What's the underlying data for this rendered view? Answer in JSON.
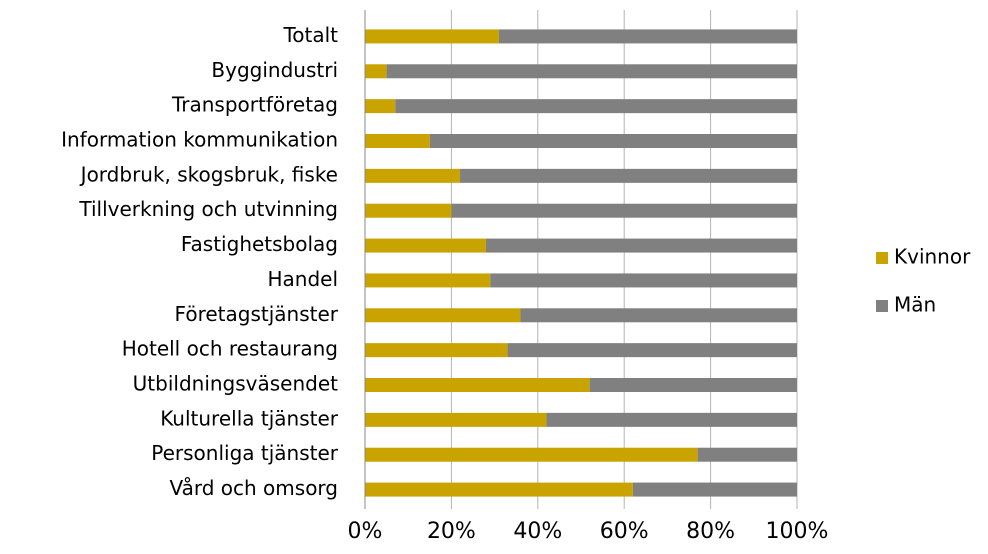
{
  "chart_data": {
    "type": "stacked-barh",
    "categories": [
      "Totalt",
      "Byggindustri",
      "Transportföretag",
      "Information kommunikation",
      "Jordbruk, skogsbruk, fiske",
      "Tillverkning och utvinning",
      "Fastighetsbolag",
      "Handel",
      "Företagstjänster",
      "Hotell och restaurang",
      "Utbildningsväsendet",
      "Kulturella tjänster",
      "Personliga tjänster",
      "Vård och omsorg"
    ],
    "series": [
      {
        "name": "Kvinnor",
        "color": "#c9a300",
        "values": [
          31,
          5,
          7,
          15,
          22,
          20,
          28,
          29,
          36,
          33,
          52,
          42,
          77,
          62
        ]
      },
      {
        "name": "Män",
        "color": "#808080",
        "values": [
          69,
          95,
          93,
          85,
          78,
          80,
          72,
          71,
          64,
          67,
          48,
          58,
          23,
          38
        ]
      }
    ],
    "xlim": [
      0,
      100
    ],
    "xticks": [
      {
        "value": 0,
        "label": "0%"
      },
      {
        "value": 20,
        "label": "20%"
      },
      {
        "value": 40,
        "label": "40%"
      },
      {
        "value": 60,
        "label": "60%"
      },
      {
        "value": 80,
        "label": "80%"
      },
      {
        "value": 100,
        "label": "100%"
      }
    ],
    "grid": true,
    "legend": "right"
  }
}
